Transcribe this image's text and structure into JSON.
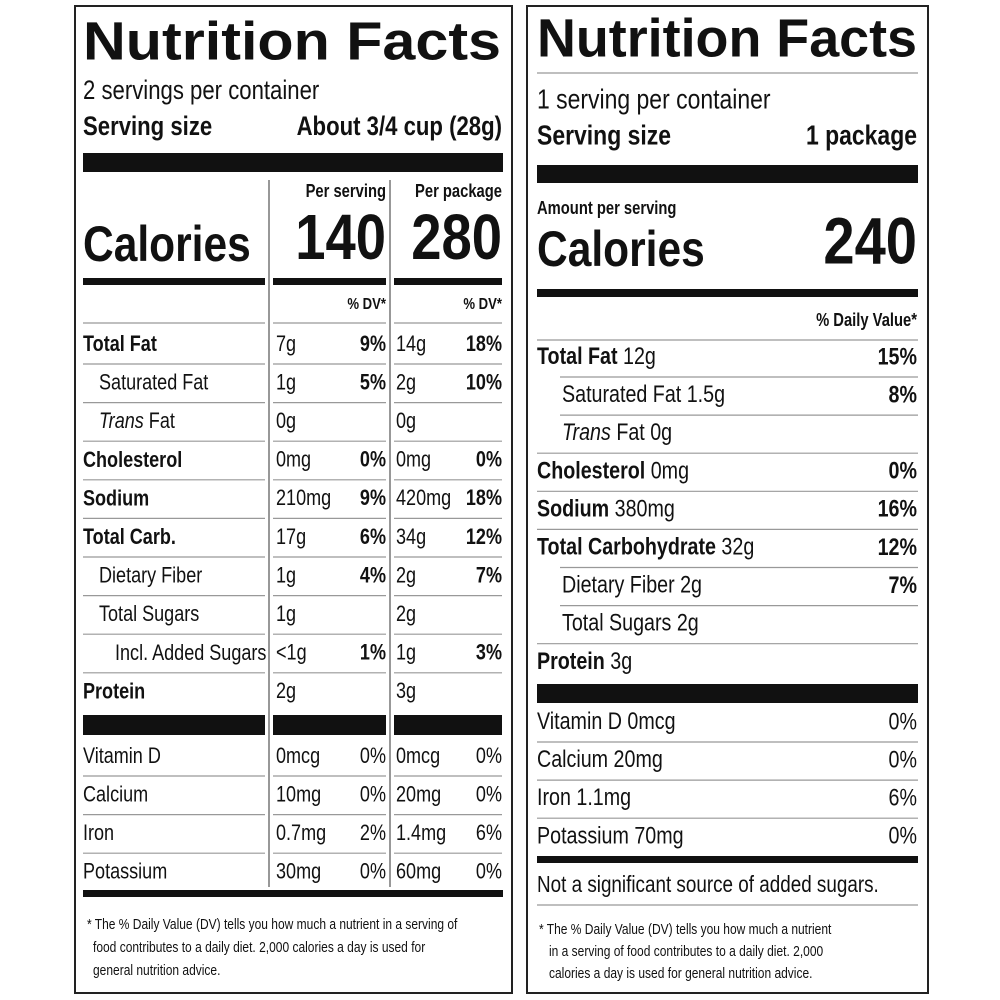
{
  "left": {
    "title": "Nutrition Facts",
    "servings": "2 servings per container",
    "serving_size_label": "Serving size",
    "serving_size": "About 3/4 cup (28g)",
    "calories_label": "Calories",
    "column_heads": [
      "Per serving",
      "Per package"
    ],
    "calories": [
      "140",
      "280"
    ],
    "dv_heads": [
      "% DV*",
      "% DV*"
    ],
    "rows": [
      {
        "name": "Total Fat",
        "serving": [
          "7g",
          "9%"
        ],
        "package": [
          "14g",
          "18%"
        ]
      },
      {
        "name": "Saturated Fat",
        "serving": [
          "1g",
          "5%"
        ],
        "package": [
          "2g",
          "10%"
        ]
      },
      {
        "italic_prefix": "Trans",
        "name": "Fat",
        "serving": [
          "0g"
        ],
        "package": [
          "0g"
        ]
      },
      {
        "name": "Cholesterol",
        "serving": [
          "0mg",
          "0%"
        ],
        "package": [
          "0mg",
          "0%"
        ]
      },
      {
        "name": "Sodium",
        "serving": [
          "210mg",
          "9%"
        ],
        "package": [
          "420mg",
          "18%"
        ]
      },
      {
        "name": "Total Carb.",
        "serving": [
          "17g",
          "6%"
        ],
        "package": [
          "34g",
          "12%"
        ]
      },
      {
        "name": "Dietary Fiber",
        "serving": [
          "1g",
          "4%"
        ],
        "package": [
          "2g",
          "7%"
        ]
      },
      {
        "name": "Total Sugars",
        "serving": [
          "1g"
        ],
        "package": [
          "2g"
        ]
      },
      {
        "name": "Incl. Added Sugars",
        "serving": [
          "<1g",
          "1%"
        ],
        "package": [
          "1g",
          "3%"
        ]
      },
      {
        "name": "Protein",
        "serving": [
          "2g"
        ],
        "package": [
          "3g"
        ]
      }
    ],
    "vitamins": [
      {
        "name": "Vitamin D",
        "serving": [
          "0mcg",
          "0%"
        ],
        "package": [
          "0mcg",
          "0%"
        ]
      },
      {
        "name": "Calcium",
        "serving": [
          "10mg",
          "0%"
        ],
        "package": [
          "20mg",
          "0%"
        ]
      },
      {
        "name": "Iron",
        "serving": [
          "0.7mg",
          "2%"
        ],
        "package": [
          "1.4mg",
          "6%"
        ]
      },
      {
        "name": "Potassium",
        "serving": [
          "30mg",
          "0%"
        ],
        "package": [
          "60mg",
          "0%"
        ]
      }
    ],
    "footnote": [
      "* The % Daily Value (DV) tells you how much a nutrient in a serving of",
      "food contributes to a daily diet. 2,000 calories a day is used for",
      "general nutrition advice."
    ]
  },
  "right": {
    "title": "Nutrition Facts",
    "servings": "1 serving per container",
    "serving_size_label": "Serving size",
    "serving_size": "1 package",
    "amount_label": "Amount per serving",
    "calories_label": "Calories",
    "calories": "240",
    "dv_head": "% Daily Value*",
    "rows": [
      {
        "name": "Total Fat",
        "amount": "12g",
        "dv": "15%"
      },
      {
        "name": "Saturated Fat",
        "amount": "1.5g",
        "dv": "8%"
      },
      {
        "italic_prefix": "Trans",
        "name": "Fat",
        "amount": "0g"
      },
      {
        "name": "Cholesterol",
        "amount": "0mg",
        "dv": "0%"
      },
      {
        "name": "Sodium",
        "amount": "380mg",
        "dv": "16%"
      },
      {
        "name": "Total Carbohydrate",
        "amount": "32g",
        "dv": "12%"
      },
      {
        "name": "Dietary Fiber",
        "amount": "2g",
        "dv": "7%"
      },
      {
        "name": "Total Sugars",
        "amount": "2g"
      },
      {
        "name": "Protein",
        "amount": "3g"
      }
    ],
    "vitamins": [
      {
        "name": "Vitamin D",
        "amount": "0mcg",
        "dv": "0%"
      },
      {
        "name": "Calcium",
        "amount": "20mg",
        "dv": "0%"
      },
      {
        "name": "Iron",
        "amount": "1.1mg",
        "dv": "6%"
      },
      {
        "name": "Potassium",
        "amount": "70mg",
        "dv": "0%"
      }
    ],
    "added_sugars_note": "Not a significant source of added sugars.",
    "footnote": [
      "* The % Daily Value (DV) tells you how much a nutrient",
      "in a serving of food contributes to a daily diet. 2,000",
      "calories a day is used for general nutrition advice."
    ]
  }
}
